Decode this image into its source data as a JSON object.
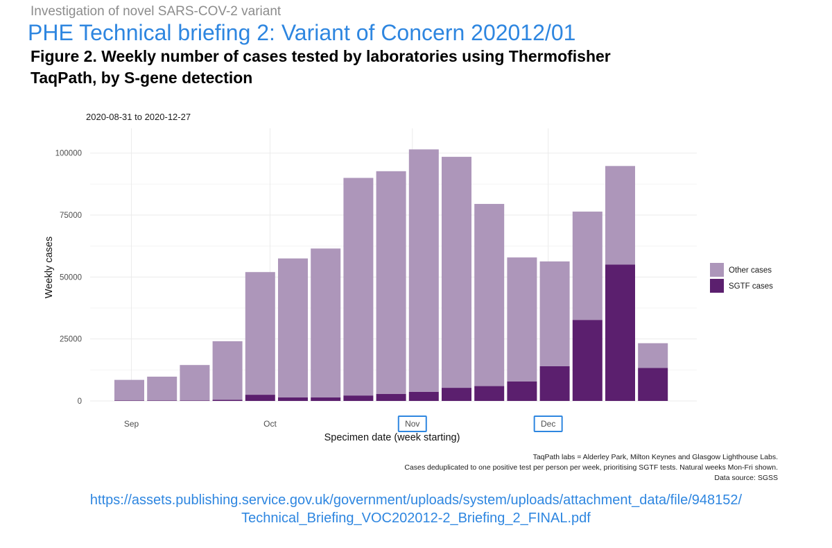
{
  "header": {
    "kicker": "Investigation of novel SARS-COV-2 variant",
    "title": "PHE Technical briefing 2: Variant of Concern 202012/01",
    "figure_caption_line1": "Figure 2. Weekly number of cases tested by laboratories using Thermofisher",
    "figure_caption_line2": "TaqPath, by S-gene detection"
  },
  "chart_data": {
    "type": "bar",
    "stacked": true,
    "subtitle": "2020-08-31  to  2020-12-27",
    "xlabel": "Specimen date (week starting)",
    "ylabel": "Weekly cases",
    "ylim": [
      0,
      110000
    ],
    "y_ticks": [
      0,
      25000,
      50000,
      75000,
      100000
    ],
    "y_tick_labels": [
      "0",
      "25000",
      "50000",
      "75000",
      "100000"
    ],
    "x_tick_labels": [
      {
        "label": "Sep",
        "after_week": 0.5,
        "highlighted": false
      },
      {
        "label": "Oct",
        "after_week": 4.8,
        "highlighted": false
      },
      {
        "label": "Nov",
        "after_week": 9.15,
        "highlighted": true
      },
      {
        "label": "Dec",
        "after_week": 13.3,
        "highlighted": true
      }
    ],
    "weeks": [
      "2020-08-31",
      "2020-09-07",
      "2020-09-14",
      "2020-09-21",
      "2020-09-28",
      "2020-10-05",
      "2020-10-12",
      "2020-10-19",
      "2020-10-26",
      "2020-11-02",
      "2020-11-09",
      "2020-11-16",
      "2020-11-23",
      "2020-11-30",
      "2020-12-07",
      "2020-12-14",
      "2020-12-21"
    ],
    "series": [
      {
        "name": "SGTF cases",
        "color": "#5b1f6e",
        "values": [
          200,
          200,
          200,
          500,
          2500,
          1400,
          1400,
          2200,
          2800,
          3700,
          5300,
          6000,
          7900,
          14000,
          32700,
          55000,
          13300
        ]
      },
      {
        "name": "Other cases",
        "color": "#ad96ba",
        "values": [
          8300,
          9600,
          14300,
          23600,
          49500,
          56100,
          60100,
          87800,
          89900,
          97800,
          93200,
          73500,
          50000,
          42300,
          43700,
          39800,
          10000
        ]
      }
    ],
    "legend": {
      "position": "right",
      "items": [
        "Other cases",
        "SGTF cases"
      ]
    },
    "grid": true,
    "notes": [
      "TaqPath labs = Alderley Park, Milton Keynes and Glasgow Lighthouse Labs.",
      "Cases deduplicated to one positive test per person per week, prioritising SGTF tests. Natural weeks Mon-Fri shown.",
      "Data source: SGSS"
    ],
    "colors": {
      "grid": "#ebebeb",
      "tick_text": "#4d4d4d",
      "highlight_box": "#2e86e0"
    }
  },
  "source": {
    "url_line1": "https://assets.publishing.service.gov.uk/government/uploads/system/uploads/attachment_data/file/948152/",
    "url_line2": "Technical_Briefing_VOC202012-2_Briefing_2_FINAL.pdf"
  }
}
